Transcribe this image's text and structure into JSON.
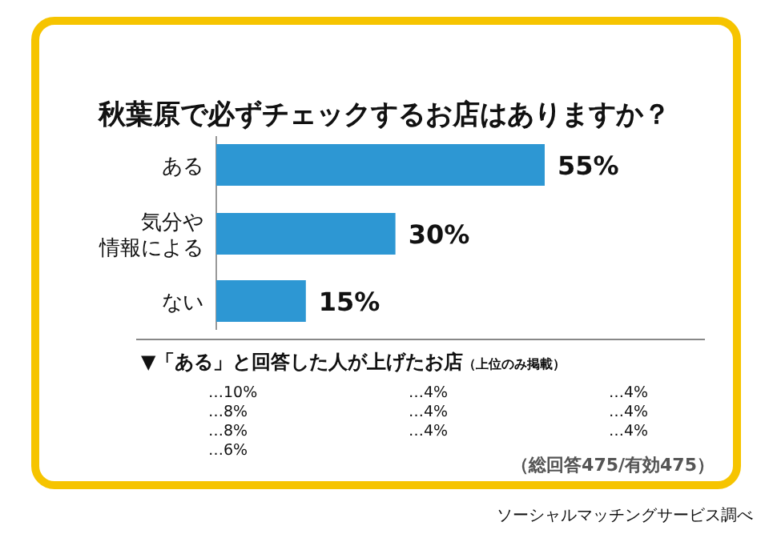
{
  "chart_data": [
    {
      "type": "bar",
      "orientation": "horizontal",
      "title": "秋葉原で必ずチェックするお店はありますか？",
      "categories": [
        "ある",
        "気分や情報による",
        "ない"
      ],
      "values": [
        55,
        30,
        15
      ],
      "value_labels": [
        "55%",
        "30%",
        "15%"
      ],
      "color": "#2d97d3",
      "annotations": [
        "（総回答475/有効475）",
        "ソーシャルマッチングサービス調べ"
      ]
    },
    {
      "type": "other",
      "title": "▼「ある」と回答した人が上げたお店",
      "subtitle": "（上位のみ掲載）",
      "annotations": [
        "…10%",
        "…8%",
        "…8%",
        "…6%",
        "…4%",
        "…4%",
        "…4%",
        "…4%",
        "…4%",
        "…4%"
      ]
    }
  ]
}
